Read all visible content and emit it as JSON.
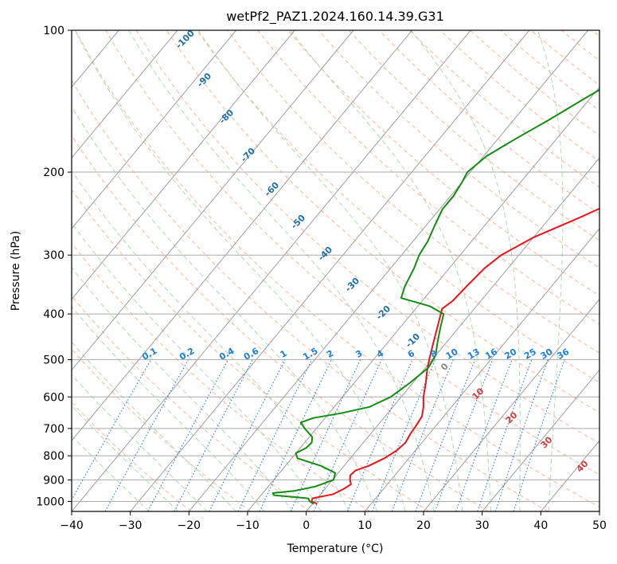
{
  "chart_data": {
    "type": "line",
    "title": "wetPf2_PAZ1.2024.160.14.39.G31",
    "xlabel": "Temperature (°C)",
    "ylabel": "Pressure (hPa)",
    "xlim": [
      -40,
      50
    ],
    "ylim": [
      1050,
      100
    ],
    "y_scale": "log",
    "x_ticks": [
      -40,
      -30,
      -20,
      -10,
      0,
      10,
      20,
      30,
      40,
      50
    ],
    "y_ticks": [
      100,
      200,
      300,
      400,
      500,
      600,
      700,
      800,
      900,
      1000
    ],
    "grid": true,
    "colors": {
      "temperature": "#e8141c",
      "dewpoint": "#148c14",
      "mixing_ratio": "#1e7fd6",
      "moist_adiabat_label": "#1f6fa8",
      "dry_adiabat_label": "#d23c3c"
    },
    "series": [
      {
        "name": "",
        "color": "#e8141c",
        "points": [
          {
            "p": 1012,
            "t": 0.8
          },
          {
            "p": 1000,
            "t": -0.5
          },
          {
            "p": 985,
            "t": -0.8
          },
          {
            "p": 965,
            "t": 2.2
          },
          {
            "p": 940,
            "t": 3.2
          },
          {
            "p": 920,
            "t": 3.8
          },
          {
            "p": 900,
            "t": 3.0
          },
          {
            "p": 880,
            "t": 2.4
          },
          {
            "p": 860,
            "t": 2.6
          },
          {
            "p": 840,
            "t": 4.2
          },
          {
            "p": 810,
            "t": 5.8
          },
          {
            "p": 780,
            "t": 6.8
          },
          {
            "p": 750,
            "t": 7.2
          },
          {
            "p": 720,
            "t": 6.8
          },
          {
            "p": 690,
            "t": 6.6
          },
          {
            "p": 660,
            "t": 6.3
          },
          {
            "p": 630,
            "t": 5.2
          },
          {
            "p": 600,
            "t": 3.8
          },
          {
            "p": 560,
            "t": 2.2
          },
          {
            "p": 530,
            "t": 0.8
          },
          {
            "p": 500,
            "t": -0.5
          },
          {
            "p": 460,
            "t": -2.2
          },
          {
            "p": 420,
            "t": -4.0
          },
          {
            "p": 390,
            "t": -5.5
          },
          {
            "p": 375,
            "t": -4.8
          },
          {
            "p": 350,
            "t": -4.5
          },
          {
            "p": 320,
            "t": -4.0
          },
          {
            "p": 300,
            "t": -3.0
          },
          {
            "p": 275,
            "t": 0.0
          },
          {
            "p": 250,
            "t": 5.0
          },
          {
            "p": 230,
            "t": 9.0
          },
          {
            "p": 210,
            "t": 13.0
          },
          {
            "p": 190,
            "t": 15.0
          },
          {
            "p": 170,
            "t": 18.0
          },
          {
            "p": 150,
            "t": 22.0
          },
          {
            "p": 130,
            "t": 27.0
          },
          {
            "p": 115,
            "t": 31.0
          },
          {
            "p": 100,
            "t": 37.0
          }
        ]
      },
      {
        "name": "",
        "color": "#148c14",
        "points": [
          {
            "p": 1012,
            "t": 0.2
          },
          {
            "p": 1000,
            "t": -0.8
          },
          {
            "p": 985,
            "t": -1.5
          },
          {
            "p": 970,
            "t": -7.8
          },
          {
            "p": 960,
            "t": -8.3
          },
          {
            "p": 950,
            "t": -5.0
          },
          {
            "p": 930,
            "t": -2.0
          },
          {
            "p": 900,
            "t": 0.2
          },
          {
            "p": 870,
            "t": -0.5
          },
          {
            "p": 840,
            "t": -4.0
          },
          {
            "p": 810,
            "t": -9.0
          },
          {
            "p": 790,
            "t": -10.0
          },
          {
            "p": 770,
            "t": -9.0
          },
          {
            "p": 750,
            "t": -8.8
          },
          {
            "p": 730,
            "t": -9.5
          },
          {
            "p": 700,
            "t": -12.0
          },
          {
            "p": 680,
            "t": -13.5
          },
          {
            "p": 665,
            "t": -12.0
          },
          {
            "p": 650,
            "t": -8.0
          },
          {
            "p": 630,
            "t": -4.0
          },
          {
            "p": 600,
            "t": -1.8
          },
          {
            "p": 560,
            "t": -0.5
          },
          {
            "p": 520,
            "t": 0.5
          },
          {
            "p": 490,
            "t": 0.0
          },
          {
            "p": 460,
            "t": -1.5
          },
          {
            "p": 430,
            "t": -3.0
          },
          {
            "p": 400,
            "t": -4.5
          },
          {
            "p": 385,
            "t": -8.0
          },
          {
            "p": 370,
            "t": -14.0
          },
          {
            "p": 350,
            "t": -15.0
          },
          {
            "p": 320,
            "t": -16.0
          },
          {
            "p": 300,
            "t": -17.0
          },
          {
            "p": 280,
            "t": -17.5
          },
          {
            "p": 260,
            "t": -18.5
          },
          {
            "p": 240,
            "t": -19.5
          },
          {
            "p": 225,
            "t": -19.5
          },
          {
            "p": 210,
            "t": -20.0
          },
          {
            "p": 200,
            "t": -20.5
          },
          {
            "p": 185,
            "t": -19.5
          },
          {
            "p": 170,
            "t": -17.0
          },
          {
            "p": 155,
            "t": -14.0
          },
          {
            "p": 140,
            "t": -11.0
          },
          {
            "p": 125,
            "t": -7.5
          },
          {
            "p": 110,
            "t": -3.0
          },
          {
            "p": 100,
            "t": 0.5
          }
        ]
      }
    ],
    "mixing_ratio_labels": [
      "0.1",
      "0.2",
      "0.4",
      "0.6",
      "1",
      "1.5",
      "2",
      "3",
      "4",
      "6",
      "8",
      "10",
      "13",
      "16",
      "20",
      "25",
      "30",
      "36"
    ],
    "mixing_ratio_values": [
      0.1,
      0.2,
      0.4,
      0.6,
      1,
      1.5,
      2,
      3,
      4,
      6,
      8,
      10,
      13,
      16,
      20,
      25,
      30,
      36
    ],
    "moist_adiabat_labels": [
      {
        "text": "-100",
        "value": -100
      },
      {
        "text": "-90",
        "value": -90
      },
      {
        "text": "-80",
        "value": -80
      },
      {
        "text": "-70",
        "value": -70
      },
      {
        "text": "-60",
        "value": -60
      },
      {
        "text": "-50",
        "value": -50
      },
      {
        "text": "-40",
        "value": -40
      },
      {
        "text": "-30",
        "value": -30
      },
      {
        "text": "-20",
        "value": -20
      },
      {
        "text": "-10",
        "value": -10
      },
      {
        "text": "0",
        "value": 0
      },
      {
        "text": "10",
        "value": 10
      },
      {
        "text": "20",
        "value": 20
      },
      {
        "text": "30",
        "value": 30
      },
      {
        "text": "40",
        "value": 40
      }
    ]
  }
}
